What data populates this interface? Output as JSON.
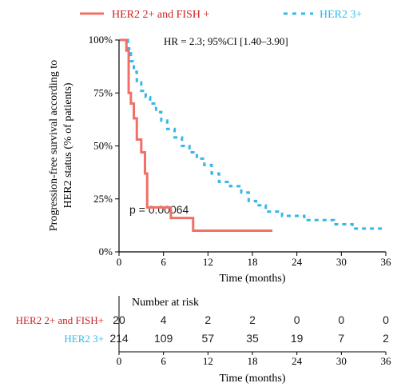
{
  "chart_data": {
    "type": "line",
    "subtype": "kaplan-meier",
    "ylabel_line1": "Progression-free survival according to",
    "ylabel_line2": "HER2 status (% of patients)",
    "xlabel": "Time (months)",
    "xlim": [
      0,
      36
    ],
    "ylim": [
      0,
      100
    ],
    "x_ticks": [
      0,
      6,
      12,
      18,
      24,
      30,
      36
    ],
    "y_ticks": [
      0,
      25,
      50,
      75,
      100
    ],
    "y_tick_labels": [
      "0%",
      "25%",
      "50%",
      "75%",
      "100%"
    ],
    "annotations": {
      "hr": "HR = 2.3; 95%CI [1.40–3.90]",
      "p_value": "p = 0.00064"
    },
    "legend_position": "top",
    "series": [
      {
        "name": "HER2 2+ and FISH +",
        "color": "#f07068",
        "style": "solid",
        "x": [
          0,
          1.0,
          1.0,
          1.3,
          1.3,
          1.6,
          1.6,
          2.0,
          2.0,
          2.4,
          2.4,
          3.0,
          3.0,
          3.5,
          3.5,
          3.8,
          3.8,
          7.0,
          7.0,
          10.0,
          10.0,
          20.7
        ],
        "y": [
          100,
          100,
          95,
          95,
          75,
          75,
          70,
          70,
          63,
          63,
          53,
          53,
          47,
          47,
          37,
          37,
          21,
          21,
          16,
          16,
          10,
          10
        ]
      },
      {
        "name": "HER2 3+",
        "color": "#35b8e6",
        "style": "dashed",
        "x": [
          0,
          1.2,
          1.2,
          1.6,
          1.6,
          2.0,
          2.0,
          2.4,
          2.4,
          3.0,
          3.0,
          3.6,
          3.6,
          4.2,
          4.2,
          5.0,
          5.0,
          5.7,
          5.7,
          6.5,
          6.5,
          7.5,
          7.5,
          8.5,
          8.5,
          9.5,
          9.5,
          10.5,
          10.5,
          11.5,
          11.5,
          12.5,
          12.5,
          13.5,
          13.5,
          15.0,
          15.0,
          16.5,
          16.5,
          17.5,
          17.5,
          18.5,
          18.5,
          19.8,
          19.8,
          22.0,
          22.0,
          25.0,
          25.0,
          29.0,
          29.0,
          31.5,
          31.5,
          36.0
        ],
        "y": [
          100,
          100,
          96,
          96,
          90,
          90,
          85,
          85,
          80,
          80,
          76,
          76,
          73,
          73,
          70,
          70,
          66,
          66,
          62,
          62,
          58,
          58,
          54,
          54,
          50,
          50,
          47,
          47,
          44,
          44,
          41,
          41,
          37,
          37,
          33,
          33,
          31,
          31,
          28,
          28,
          24,
          24,
          22,
          22,
          19,
          19,
          17,
          17,
          15,
          15,
          13,
          13,
          11,
          11
        ]
      }
    ],
    "risk_table": {
      "title": "Number at risk",
      "times": [
        0,
        6,
        12,
        18,
        24,
        30,
        36
      ],
      "rows": [
        {
          "label": "HER2 2+ and FISH+",
          "color": "#cc1f1f",
          "counts": [
            "20",
            "4",
            "2",
            "2",
            "0",
            "0",
            "0"
          ]
        },
        {
          "label": "HER2 3+",
          "color": "#35b8e6",
          "counts": [
            "214",
            "109",
            "57",
            "35",
            "19",
            "7",
            "2"
          ]
        }
      ],
      "xlabel": "Time (months)"
    }
  }
}
